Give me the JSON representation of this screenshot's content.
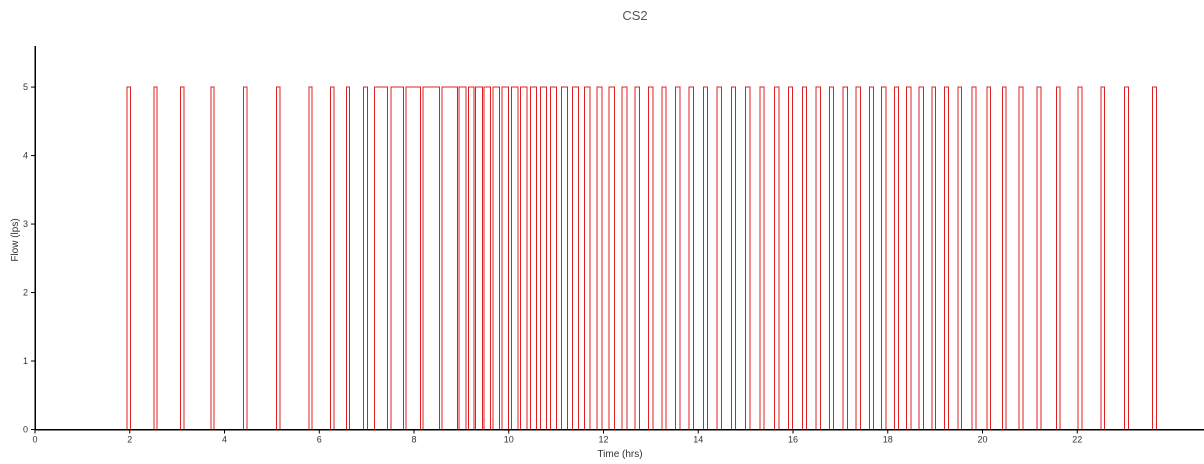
{
  "chart_data": {
    "type": "line",
    "title": "CS2",
    "xlabel": "Time (hrs)",
    "ylabel": "Flow (lps)",
    "xlim": [
      0,
      24
    ],
    "ylim": [
      0,
      5.6
    ],
    "xticks": [
      "0",
      "2",
      "4",
      "6",
      "8",
      "10",
      "12",
      "14",
      "16",
      "18",
      "20",
      "22"
    ],
    "yticks": [
      "0",
      "1",
      "2",
      "3",
      "4",
      "5"
    ],
    "grid": false,
    "legend": "none",
    "colors": {
      "series": "#e02020",
      "axis": "#000000"
    },
    "series": [
      {
        "on_value": 5,
        "off_value": 0,
        "pulses": [
          [
            1.94,
            2.02
          ],
          [
            2.51,
            2.58
          ],
          [
            3.07,
            3.14
          ],
          [
            3.71,
            3.78
          ],
          [
            4.4,
            4.47
          ],
          [
            5.1,
            5.17
          ],
          [
            5.78,
            5.85
          ],
          [
            6.24,
            6.31
          ],
          [
            6.57,
            6.64
          ],
          [
            6.93,
            7.02
          ],
          [
            7.17,
            7.44
          ],
          [
            7.51,
            7.78
          ],
          [
            7.83,
            8.14
          ],
          [
            8.19,
            8.54
          ],
          [
            8.59,
            8.92
          ],
          [
            8.95,
            9.1
          ],
          [
            9.15,
            9.27
          ],
          [
            9.3,
            9.45
          ],
          [
            9.48,
            9.62
          ],
          [
            9.67,
            9.8
          ],
          [
            9.86,
            9.99
          ],
          [
            10.06,
            10.19
          ],
          [
            10.25,
            10.38
          ],
          [
            10.46,
            10.59
          ],
          [
            10.67,
            10.8
          ],
          [
            10.88,
            11.01
          ],
          [
            11.11,
            11.24
          ],
          [
            11.35,
            11.47
          ],
          [
            11.6,
            11.72
          ],
          [
            11.86,
            11.97
          ],
          [
            12.12,
            12.23
          ],
          [
            12.39,
            12.5
          ],
          [
            12.66,
            12.76
          ],
          [
            12.95,
            13.04
          ],
          [
            13.23,
            13.32
          ],
          [
            13.52,
            13.61
          ],
          [
            13.81,
            13.9
          ],
          [
            14.11,
            14.2
          ],
          [
            14.4,
            14.49
          ],
          [
            14.7,
            14.79
          ],
          [
            15.0,
            15.09
          ],
          [
            15.3,
            15.39
          ],
          [
            15.61,
            15.7
          ],
          [
            15.9,
            15.99
          ],
          [
            16.2,
            16.29
          ],
          [
            16.49,
            16.58
          ],
          [
            16.77,
            16.86
          ],
          [
            17.06,
            17.15
          ],
          [
            17.33,
            17.42
          ],
          [
            17.61,
            17.7
          ],
          [
            17.87,
            17.96
          ],
          [
            18.14,
            18.23
          ],
          [
            18.4,
            18.49
          ],
          [
            18.66,
            18.75
          ],
          [
            18.93,
            19.01
          ],
          [
            19.2,
            19.28
          ],
          [
            19.48,
            19.56
          ],
          [
            19.78,
            19.86
          ],
          [
            20.09,
            20.17
          ],
          [
            20.42,
            20.5
          ],
          [
            20.77,
            20.85
          ],
          [
            21.15,
            21.23
          ],
          [
            21.56,
            21.64
          ],
          [
            22.02,
            22.1
          ],
          [
            22.5,
            22.58
          ],
          [
            23.0,
            23.08
          ],
          [
            23.59,
            23.67
          ]
        ]
      }
    ]
  }
}
